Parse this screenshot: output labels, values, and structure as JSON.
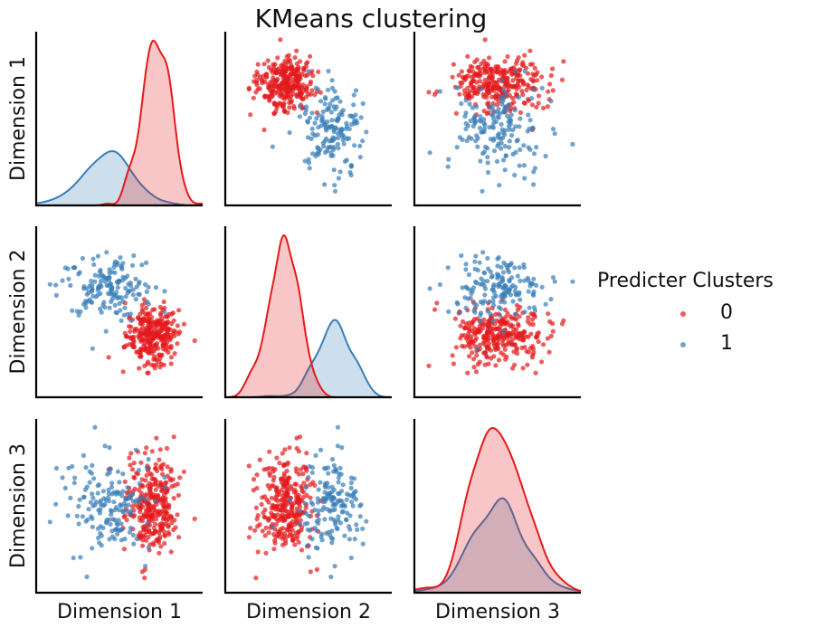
{
  "chart_data": {
    "type": "scatter",
    "subtype": "pairplot",
    "title": "KMeans clustering",
    "variables": [
      "Dimension 1",
      "Dimension 2",
      "Dimension 3"
    ],
    "diagonal": "kde",
    "ticks_visible": false,
    "legend": {
      "title": "Predicter Clusters",
      "placement": "right",
      "entries": [
        {
          "label": "0",
          "color": "#e41a1c"
        },
        {
          "label": "1",
          "color": "#377eb8"
        }
      ]
    },
    "clusters": [
      {
        "name": "0",
        "color": "#e41a1c",
        "count": 300,
        "mean": [
          1.0,
          -0.9,
          0.0
        ],
        "std": [
          0.45,
          0.55,
          1.0
        ]
      },
      {
        "name": "1",
        "color": "#377eb8",
        "count": 160,
        "mean": [
          -0.6,
          1.0,
          0.0
        ],
        "std": [
          0.85,
          0.6,
          1.0
        ]
      }
    ],
    "axis_ranges": {
      "Dimension 1": [
        -2.8,
        2.5
      ],
      "Dimension 2": [
        -3.0,
        3.0
      ],
      "Dimension 3": [
        -3.2,
        3.2
      ]
    }
  }
}
